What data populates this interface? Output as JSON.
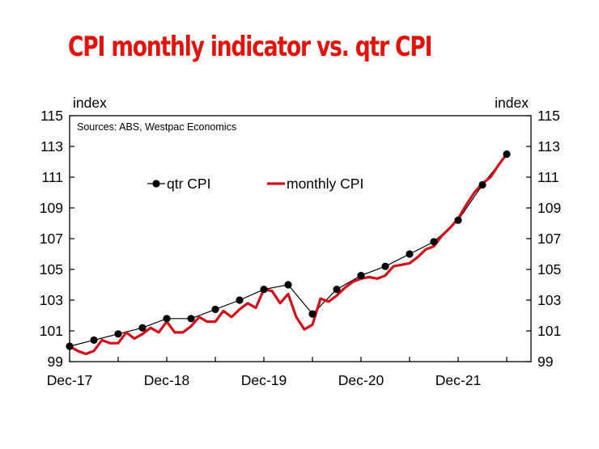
{
  "title": "CPI monthly indicator vs. qtr CPI",
  "colors": {
    "title": "#e3120b",
    "monthly": "#d0111b",
    "qtr": "#000000"
  },
  "chart_data": {
    "type": "line",
    "title": "CPI monthly indicator vs. qtr CPI",
    "source": "Sources: ABS, Westpac Economics",
    "ylabel_left": "index",
    "ylabel_right": "index",
    "ylim": [
      99,
      115
    ],
    "yticks": [
      99,
      101,
      103,
      105,
      107,
      109,
      111,
      113,
      115
    ],
    "x_ticks": [
      {
        "label": "Dec-17",
        "i": 0
      },
      {
        "label": "Dec-18",
        "i": 12
      },
      {
        "label": "Dec-19",
        "i": 24
      },
      {
        "label": "Dec-20",
        "i": 36
      },
      {
        "label": "Dec-21",
        "i": 48
      }
    ],
    "grid": false,
    "legend": "center-left",
    "series": [
      {
        "name": "qtr CPI",
        "style": "line-markers",
        "x_index": [
          0,
          3,
          6,
          9,
          12,
          15,
          18,
          21,
          24,
          27,
          30,
          33,
          36,
          39,
          42,
          45,
          48,
          51,
          54
        ],
        "values": [
          100.0,
          100.4,
          100.8,
          101.2,
          101.8,
          101.8,
          102.4,
          103.0,
          103.7,
          104.0,
          102.1,
          103.7,
          104.6,
          105.2,
          106.0,
          106.8,
          108.2,
          110.5,
          112.5
        ]
      },
      {
        "name": "monthly CPI",
        "style": "line",
        "x_index": [
          0,
          1,
          2,
          3,
          4,
          5,
          6,
          7,
          8,
          9,
          10,
          11,
          12,
          13,
          14,
          15,
          16,
          17,
          18,
          19,
          20,
          21,
          22,
          23,
          24,
          25,
          26,
          27,
          28,
          29,
          30,
          31,
          32,
          33,
          34,
          35,
          36,
          37,
          38,
          39,
          40,
          41,
          42,
          43,
          44,
          45,
          46,
          47,
          48,
          49,
          50,
          51,
          52,
          53,
          54
        ],
        "values": [
          100.0,
          99.7,
          99.5,
          99.7,
          100.4,
          100.2,
          100.2,
          100.9,
          100.5,
          100.8,
          101.2,
          100.9,
          101.6,
          100.9,
          100.9,
          101.3,
          101.9,
          101.6,
          101.6,
          102.3,
          101.9,
          102.4,
          102.8,
          102.5,
          103.7,
          103.6,
          102.8,
          103.4,
          101.9,
          101.1,
          101.4,
          103.1,
          102.9,
          103.3,
          103.8,
          104.2,
          104.4,
          104.5,
          104.4,
          104.6,
          105.2,
          105.3,
          105.4,
          105.8,
          106.3,
          106.5,
          107.2,
          107.7,
          108.3,
          109.2,
          110.0,
          110.6,
          111.0,
          111.8,
          112.5
        ]
      }
    ]
  }
}
